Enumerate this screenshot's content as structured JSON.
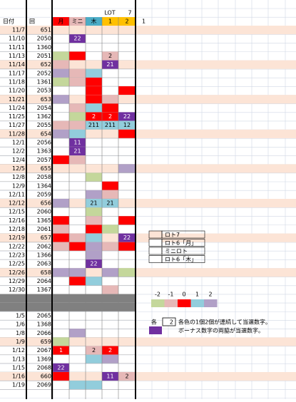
{
  "header": {
    "lot_label": "LOT",
    "lot_number": "7",
    "columns": [
      "日付",
      "回",
      "月",
      "ミニ",
      "木",
      "1",
      "2",
      "1"
    ],
    "column_colors": [
      null,
      null,
      "#ff0000",
      "#e6b8b7",
      "#4bacc6",
      "#ffc000",
      "#ffc000",
      null
    ]
  },
  "highlight_color": "#fce4d6",
  "rows": [
    {
      "date": "11/7",
      "num": "651",
      "hl": true,
      "colors": [
        null,
        null,
        null,
        null,
        null
      ],
      "labels": [
        null,
        null,
        null,
        null,
        null
      ]
    },
    {
      "date": "11/10",
      "num": "2050",
      "colors": [
        null,
        "#7030a0",
        null,
        null,
        null
      ],
      "labels": [
        null,
        "22",
        null,
        null,
        null
      ]
    },
    {
      "date": "11/11",
      "num": "1360",
      "colors": [
        null,
        null,
        null,
        null,
        null
      ],
      "labels": [
        null,
        null,
        null,
        null,
        null
      ]
    },
    {
      "date": "11/13",
      "num": "2051",
      "colors": [
        "#c4d79b",
        "#ff0000",
        null,
        "#e6b8b7",
        null
      ],
      "labels": [
        null,
        null,
        null,
        "2",
        null
      ]
    },
    {
      "date": "11/14",
      "num": "652",
      "hl": true,
      "colors": [
        "#e6b8b7",
        null,
        null,
        "#7030a0",
        null
      ],
      "labels": [
        null,
        null,
        null,
        "21",
        null
      ]
    },
    {
      "date": "11/17",
      "num": "2052",
      "colors": [
        "#b1a0c7",
        "#e6b8b7",
        "#92cddc",
        null,
        null
      ],
      "labels": [
        null,
        null,
        null,
        null,
        null
      ]
    },
    {
      "date": "11/18",
      "num": "1361",
      "colors": [
        "#c4d79b",
        "#e6b8b7",
        "#ff0000",
        null,
        null
      ],
      "labels": [
        null,
        null,
        null,
        null,
        null
      ]
    },
    {
      "date": "11/20",
      "num": "2053",
      "colors": [
        null,
        null,
        "#ff0000",
        null,
        "#ff0000"
      ],
      "labels": [
        null,
        null,
        null,
        null,
        null
      ]
    },
    {
      "date": "11/21",
      "num": "653",
      "hl": true,
      "colors": [
        "#b1a0c7",
        null,
        "#ff0000",
        "#e6b8b7",
        null
      ],
      "labels": [
        null,
        null,
        null,
        null,
        null
      ]
    },
    {
      "date": "11/24",
      "num": "2054",
      "colors": [
        null,
        "#e6b8b7",
        "#92cddc",
        "#ff0000",
        null
      ],
      "labels": [
        null,
        null,
        null,
        null,
        null
      ]
    },
    {
      "date": "11/25",
      "num": "1362",
      "colors": [
        null,
        "#c4d79b",
        "#ff0000",
        "#ff0000",
        "#7030a0"
      ],
      "labels": [
        null,
        null,
        "2",
        "2",
        "22"
      ]
    },
    {
      "date": "11/27",
      "num": "2055",
      "colors": [
        "#e6b8b7",
        "#e6b8b7",
        "#92cddc",
        "#92cddc",
        "#92cddc"
      ],
      "labels": [
        null,
        null,
        "211",
        "211",
        "12"
      ]
    },
    {
      "date": "11/28",
      "num": "654",
      "hl": true,
      "colors": [
        "#b1a0c7",
        "#92cddc",
        null,
        null,
        "#ff0000"
      ],
      "labels": [
        null,
        null,
        null,
        null,
        null
      ]
    },
    {
      "date": "12/1",
      "num": "2056",
      "colors": [
        null,
        "#7030a0",
        null,
        null,
        null
      ],
      "labels": [
        null,
        "11",
        null,
        null,
        null
      ]
    },
    {
      "date": "12/2",
      "num": "1363",
      "colors": [
        null,
        "#7030a0",
        null,
        null,
        null
      ],
      "labels": [
        null,
        "21",
        null,
        null,
        null
      ]
    },
    {
      "date": "12/4",
      "num": "2057",
      "colors": [
        "#ff0000",
        "#e6b8b7",
        null,
        null,
        null
      ],
      "labels": [
        null,
        null,
        null,
        null,
        null
      ]
    },
    {
      "date": "12/5",
      "num": "655",
      "hl": true,
      "colors": [
        null,
        null,
        null,
        null,
        "#b1a0c7"
      ],
      "labels": [
        null,
        null,
        null,
        null,
        null
      ]
    },
    {
      "date": "12/8",
      "num": "2058",
      "colors": [
        null,
        null,
        "#c4d79b",
        null,
        null
      ],
      "labels": [
        null,
        null,
        null,
        null,
        null
      ]
    },
    {
      "date": "12/9",
      "num": "1364",
      "colors": [
        null,
        null,
        null,
        "#ff0000",
        null
      ],
      "labels": [
        null,
        null,
        null,
        null,
        null
      ]
    },
    {
      "date": "12/11",
      "num": "2059",
      "colors": [
        null,
        null,
        "#b1a0c7",
        "#e6b8b7",
        null
      ],
      "labels": [
        null,
        null,
        null,
        null,
        null
      ]
    },
    {
      "date": "12/12",
      "num": "656",
      "hl": true,
      "colors": [
        "#b1a0c7",
        null,
        "#92cddc",
        "#92cddc",
        null
      ],
      "labels": [
        null,
        null,
        "21",
        "21",
        null
      ]
    },
    {
      "date": "12/15",
      "num": "2060",
      "colors": [
        null,
        null,
        "#c4d79b",
        null,
        null
      ],
      "labels": [
        null,
        null,
        null,
        null,
        null
      ]
    },
    {
      "date": "12/16",
      "num": "1365",
      "colors": [
        "#ff0000",
        null,
        "#e6b8b7",
        null,
        "#ff0000"
      ],
      "labels": [
        null,
        null,
        null,
        null,
        null
      ]
    },
    {
      "date": "12/18",
      "num": "2061",
      "colors": [
        "#e6b8b7",
        null,
        "#ff0000",
        "#c4d79b",
        null
      ],
      "labels": [
        null,
        null,
        null,
        null,
        null
      ]
    },
    {
      "date": "12/19",
      "num": "657",
      "hl": true,
      "colors": [
        "#ff0000",
        "#e6b8b7",
        "#92cddc",
        null,
        "#7030a0"
      ],
      "labels": [
        null,
        null,
        null,
        null,
        "22"
      ]
    },
    {
      "date": "12/22",
      "num": "2062",
      "colors": [
        "#e6b8b7",
        "#ff0000",
        "#b1a0c7",
        "#e6b8b7",
        "#ff0000"
      ],
      "labels": [
        null,
        null,
        null,
        null,
        null
      ]
    },
    {
      "date": "12/23",
      "num": "1366",
      "colors": [
        null,
        null,
        "#b1a0c7",
        null,
        null
      ],
      "labels": [
        null,
        null,
        null,
        null,
        null
      ]
    },
    {
      "date": "12/25",
      "num": "2063",
      "colors": [
        null,
        null,
        "#7030a0",
        null,
        null
      ],
      "labels": [
        null,
        null,
        "22",
        null,
        null
      ]
    },
    {
      "date": "12/26",
      "num": "658",
      "hl": true,
      "colors": [
        "#b1a0c7",
        "#b1a0c7",
        null,
        "#b1a0c7",
        "#c4d79b"
      ],
      "labels": [
        null,
        null,
        null,
        null,
        null
      ]
    },
    {
      "date": "12/29",
      "num": "2064",
      "colors": [
        null,
        "#ff0000",
        "#92cddc",
        null,
        null
      ],
      "labels": [
        null,
        null,
        null,
        null,
        null
      ]
    },
    {
      "date": "12/30",
      "num": "1367",
      "colors": [
        null,
        null,
        null,
        "#e6b8b7",
        null
      ],
      "labels": [
        null,
        null,
        null,
        null,
        null
      ]
    },
    {
      "date": null,
      "num": null,
      "gray": true,
      "colors": [
        null,
        null,
        null,
        null,
        null
      ],
      "labels": [
        null,
        null,
        null,
        null,
        null
      ]
    },
    {
      "date": null,
      "num": null,
      "gray": true,
      "colors": [
        null,
        null,
        null,
        null,
        null
      ],
      "labels": [
        null,
        null,
        null,
        null,
        null
      ]
    },
    {
      "date": "1/5",
      "num": "2065",
      "colors": [
        null,
        null,
        null,
        null,
        null
      ],
      "labels": [
        null,
        null,
        null,
        null,
        null
      ]
    },
    {
      "date": "1/6",
      "num": "1368",
      "colors": [
        null,
        null,
        null,
        null,
        null
      ],
      "labels": [
        null,
        null,
        null,
        null,
        null
      ]
    },
    {
      "date": "1/8",
      "num": "2066",
      "colors": [
        null,
        "#b1a0c7",
        null,
        null,
        null
      ],
      "labels": [
        null,
        null,
        null,
        null,
        null
      ]
    },
    {
      "date": "1/9",
      "num": "659",
      "hl": true,
      "colors": [
        "#c4d79b",
        null,
        null,
        null,
        null
      ],
      "labels": [
        null,
        null,
        null,
        null,
        null
      ]
    },
    {
      "date": "1/12",
      "num": "2067",
      "colors": [
        "#ff0000",
        null,
        "#e6b8b7",
        "#ff0000",
        null
      ],
      "labels": [
        "1",
        null,
        "2",
        "2",
        null
      ]
    },
    {
      "date": "1/13",
      "num": "1369",
      "colors": [
        null,
        null,
        "#92cddc",
        "#b1a0c7",
        null
      ],
      "labels": [
        null,
        null,
        null,
        null,
        null
      ]
    },
    {
      "date": "1/15",
      "num": "2068",
      "colors": [
        "#7030a0",
        null,
        null,
        null,
        null
      ],
      "labels": [
        "22",
        null,
        null,
        null,
        null
      ]
    },
    {
      "date": "1/16",
      "num": "660",
      "hl": true,
      "colors": [
        "#ff0000",
        null,
        null,
        "#7030a0",
        "#e6b8b7"
      ],
      "labels": [
        null,
        null,
        null,
        "11",
        "2"
      ]
    },
    {
      "date": "1/19",
      "num": "2069",
      "colors": [
        null,
        "#92cddc",
        "#92cddc",
        null,
        null
      ],
      "labels": [
        null,
        null,
        null,
        null,
        null
      ]
    }
  ],
  "legend_games": [
    "ロト7",
    "ロト6「月」",
    "ミニロト",
    "ロト6「木」"
  ],
  "legend_game_colors": [
    "#fce4d6",
    null,
    null,
    null
  ],
  "scale_labels": [
    "-2",
    "-1",
    "0",
    "1",
    "2"
  ],
  "scale_colors": [
    "#c4d79b",
    "#e6b8b7",
    "#ff0000",
    "#92cddc",
    "#b1a0c7"
  ],
  "note_prefix": "各",
  "note_box": "2",
  "note1": "各色の1個2個が連続して当選数字。",
  "note2": "ボーナス数字の両脇が当選数字。",
  "bonus_color": "#7030a0"
}
